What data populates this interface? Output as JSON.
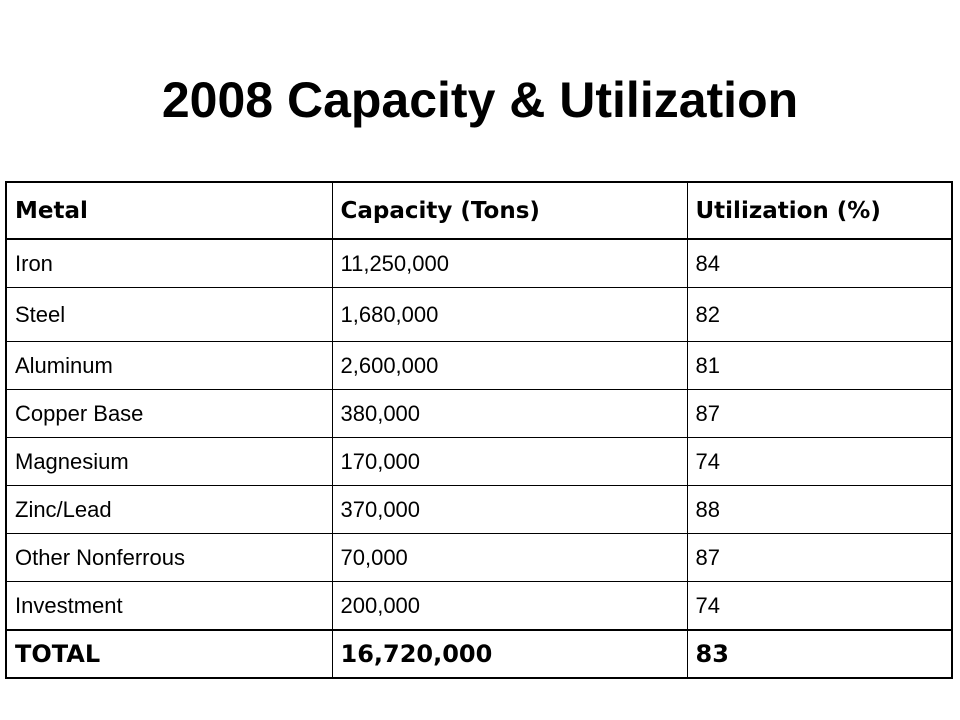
{
  "slide": {
    "title": "2008 Capacity & Utilization"
  },
  "table": {
    "headers": [
      "Metal",
      "Capacity (Tons)",
      "Utilization (%)"
    ],
    "rows": [
      [
        "Iron",
        "11,250,000",
        "84"
      ],
      [
        "Steel",
        "1,680,000",
        "82"
      ],
      [
        "Aluminum",
        "2,600,000",
        "81"
      ],
      [
        "Copper Base",
        "380,000",
        "87"
      ],
      [
        "Magnesium",
        "170,000",
        "74"
      ],
      [
        "Zinc/Lead",
        "370,000",
        "88"
      ],
      [
        "Other Nonferrous",
        "70,000",
        "87"
      ],
      [
        "Investment",
        "200,000",
        "74"
      ]
    ],
    "total": [
      "TOTAL",
      "16,720,000",
      "83"
    ]
  }
}
